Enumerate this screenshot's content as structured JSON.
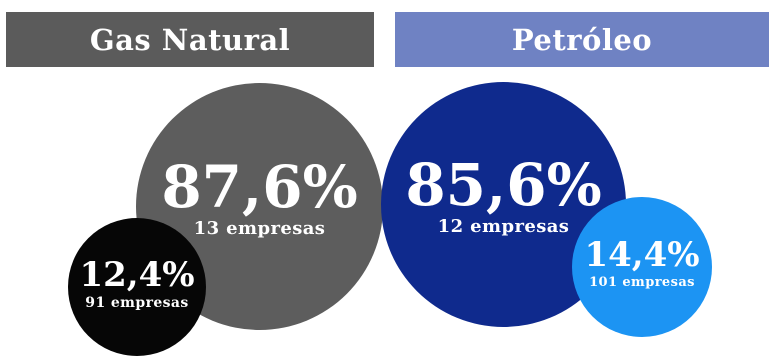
{
  "sections": {
    "gas": {
      "title": "Gas Natural",
      "big": {
        "percent": "87,6%",
        "companies": "13 empresas"
      },
      "small": {
        "percent": "12,4%",
        "companies": "91 empresas"
      }
    },
    "oil": {
      "title": "Petróleo",
      "big": {
        "percent": "85,6%",
        "companies": "12 empresas"
      },
      "small": {
        "percent": "14,4%",
        "companies": "101 empresas"
      }
    }
  },
  "colors": {
    "gas_header": "#5b5b5b",
    "gas_big": "#5d5d5d",
    "gas_small": "#060606",
    "oil_header": "#6f82c3",
    "oil_big": "#0f2a8d",
    "oil_small": "#1c94f3",
    "text": "#ffffff",
    "background": "#ffffff"
  }
}
